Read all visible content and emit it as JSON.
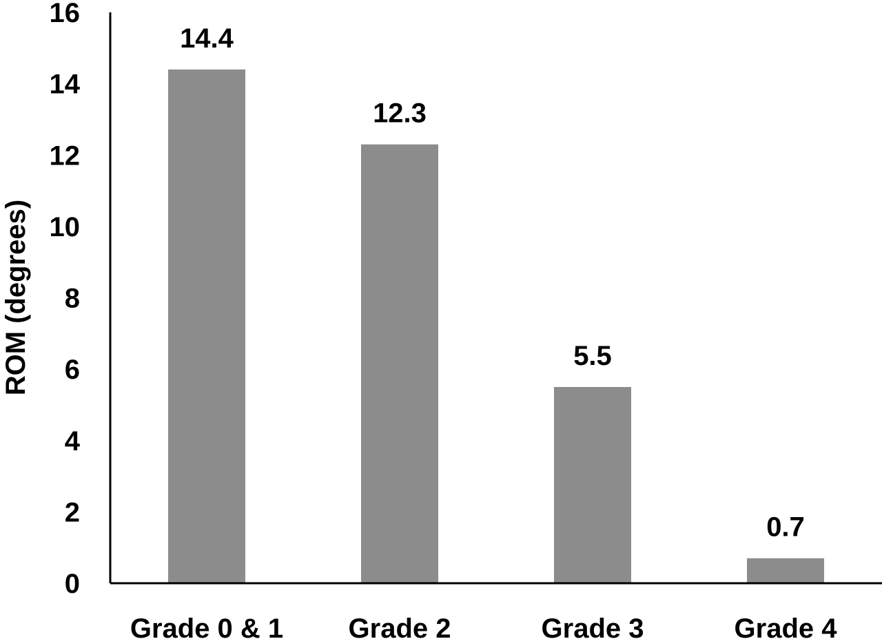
{
  "chart_data": {
    "type": "bar",
    "categories": [
      "Grade 0 & 1",
      "Grade 2",
      "Grade 3",
      "Grade 4"
    ],
    "values": [
      14.4,
      12.3,
      5.5,
      0.7
    ],
    "data_labels": [
      "14.4",
      "12.3",
      "5.5",
      "0.7"
    ],
    "ylabel": "ROM (degrees)",
    "xlabel": "",
    "ylim": [
      0,
      16
    ],
    "yticks": [
      "0",
      "2",
      "4",
      "6",
      "8",
      "10",
      "12",
      "14",
      "16"
    ],
    "grid": false,
    "legend": "none",
    "bar_color": "#8c8c8c",
    "axis_color": "#000000"
  }
}
